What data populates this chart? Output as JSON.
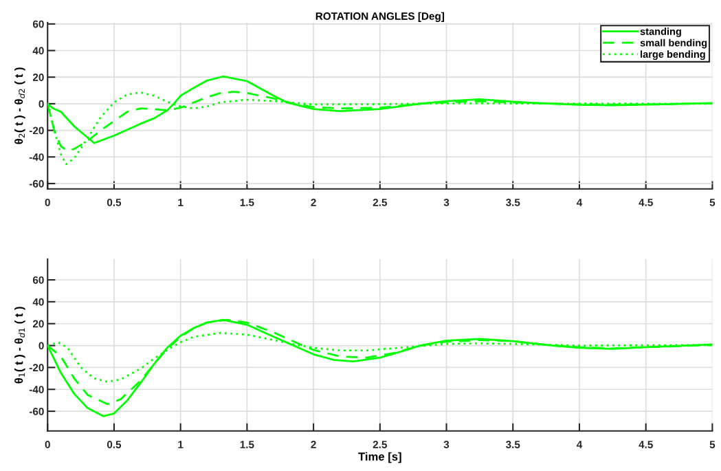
{
  "chart_data": [
    {
      "type": "line",
      "title": "ROTATION ANGLES [Deg]",
      "ylabel": "θ$_{2}$( t ) - θ$_{d2}$ ( t )",
      "xlim": [
        0,
        5
      ],
      "xticks": [
        0,
        0.5,
        1,
        1.5,
        2,
        2.5,
        3,
        3.5,
        4,
        4.5,
        5
      ],
      "ylim": [
        -64,
        61
      ],
      "yticks": [
        -60,
        -40,
        -20,
        0,
        20,
        40,
        60
      ],
      "grid": true,
      "legend": "top right",
      "series": [
        {
          "name": "standing",
          "color": "#00ff00",
          "line_style": "solid",
          "x": [
            0,
            0.04,
            0.1,
            0.2,
            0.35,
            0.5,
            0.7,
            0.8,
            0.9,
            0.95,
            1.0,
            1.1,
            1.2,
            1.32,
            1.5,
            1.7,
            1.8,
            2.0,
            2.2,
            2.5,
            2.8,
            3.0,
            3.25,
            3.5,
            3.8,
            4.0,
            4.25,
            4.5,
            5
          ],
          "values": [
            0,
            -3.4,
            -6,
            -17,
            -29.5,
            -24,
            -15,
            -11,
            -5,
            0,
            6,
            12,
            17.5,
            20.5,
            17,
            6,
            1,
            -4,
            -5.5,
            -4,
            0,
            2,
            3.4,
            1.5,
            0,
            -0.8,
            -1.2,
            -0.6,
            0.5
          ]
        },
        {
          "name": "small bending",
          "color": "#00ff00",
          "line_style": "dashed",
          "x": [
            0,
            0.05,
            0.1,
            0.15,
            0.2,
            0.3,
            0.4,
            0.5,
            0.6,
            0.7,
            0.8,
            0.9,
            1.0,
            1.1,
            1.2,
            1.3,
            1.4,
            1.5,
            1.7,
            1.85,
            2.0,
            2.2,
            2.5,
            2.8,
            3.0,
            3.25,
            3.5,
            4.0,
            4.3,
            5
          ],
          "values": [
            0,
            -20,
            -32,
            -35.5,
            -34,
            -28,
            -20,
            -13,
            -6,
            -3.5,
            -4,
            -5,
            -3,
            1,
            5,
            8,
            9,
            8,
            4,
            0,
            -2.5,
            -3.5,
            -3,
            0,
            1,
            2,
            1,
            -0.5,
            -0.8,
            0.3
          ]
        },
        {
          "name": "large bending",
          "color": "#00ff00",
          "line_style": "dotted",
          "x": [
            0,
            0.05,
            0.1,
            0.14,
            0.2,
            0.3,
            0.4,
            0.5,
            0.6,
            0.7,
            0.8,
            0.9,
            1.0,
            1.1,
            1.2,
            1.3,
            1.5,
            1.7,
            2.0,
            2.5,
            3.0,
            3.5,
            5
          ],
          "values": [
            0,
            -20,
            -38,
            -45.5,
            -41,
            -26,
            -10,
            1,
            7,
            8.5,
            6,
            1.5,
            -2,
            -3.5,
            -2,
            1,
            3,
            2,
            -0.5,
            -0.3,
            0.3,
            0.2,
            0
          ]
        }
      ]
    },
    {
      "type": "line",
      "xlabel": "Time [s]",
      "ylabel": "θ$_{1}$( t ) - θ$_{d1}$ ( t )",
      "xlim": [
        0,
        5
      ],
      "xticks": [
        0,
        0.5,
        1,
        1.5,
        2,
        2.5,
        3,
        3.5,
        4,
        4.5,
        5
      ],
      "ylim": [
        -78,
        79
      ],
      "yticks": [
        -60,
        -40,
        -20,
        0,
        20,
        40,
        60
      ],
      "grid": true,
      "series": [
        {
          "color": "#00ff00",
          "line_style": "solid",
          "x": [
            0,
            0.1,
            0.2,
            0.3,
            0.42,
            0.5,
            0.6,
            0.7,
            0.8,
            0.9,
            1.0,
            1.1,
            1.2,
            1.32,
            1.5,
            1.7,
            1.85,
            2.0,
            2.15,
            2.3,
            2.5,
            2.7,
            2.8,
            3.0,
            3.25,
            3.5,
            3.8,
            4.0,
            4.25,
            4.5,
            4.8,
            5
          ],
          "values": [
            0,
            -25,
            -44,
            -57,
            -64.5,
            -62,
            -50,
            -34,
            -17,
            -2,
            9,
            16,
            21,
            23.5,
            19,
            8,
            0,
            -8,
            -13,
            -14.5,
            -11,
            -4,
            0,
            4.5,
            6,
            4,
            0,
            -2,
            -3,
            -1.5,
            0,
            1
          ]
        },
        {
          "color": "#00ff00",
          "line_style": "dashed",
          "x": [
            0,
            0.1,
            0.2,
            0.3,
            0.45,
            0.55,
            0.7,
            0.8,
            0.9,
            1.0,
            1.1,
            1.2,
            1.35,
            1.5,
            1.7,
            1.9,
            2.0,
            2.2,
            2.4,
            2.6,
            2.8,
            3.0,
            3.25,
            3.5,
            3.8,
            4.0,
            4.25,
            4.5,
            5
          ],
          "values": [
            0,
            -10,
            -30,
            -45,
            -53.5,
            -49,
            -32,
            -17,
            -3,
            8,
            16,
            21,
            23.5,
            21,
            12,
            1,
            -4,
            -10,
            -11,
            -7,
            0,
            3.5,
            5,
            4,
            0,
            -1.5,
            -2.5,
            -1.5,
            0.5
          ]
        },
        {
          "color": "#00ff00",
          "line_style": "dotted",
          "x": [
            0,
            0.08,
            0.15,
            0.25,
            0.35,
            0.45,
            0.55,
            0.7,
            0.8,
            0.9,
            1.0,
            1.1,
            1.3,
            1.5,
            1.7,
            1.9,
            2.0,
            2.2,
            2.4,
            2.7,
            3.0,
            3.25,
            3.5,
            4.0,
            5
          ],
          "values": [
            0,
            3,
            -2,
            -20,
            -30,
            -33,
            -31,
            -21,
            -12,
            -4,
            3,
            8,
            11.5,
            10,
            5,
            0,
            -2,
            -4.5,
            -4.5,
            -1.5,
            1.5,
            2,
            1.5,
            0,
            0.5
          ]
        }
      ]
    }
  ]
}
